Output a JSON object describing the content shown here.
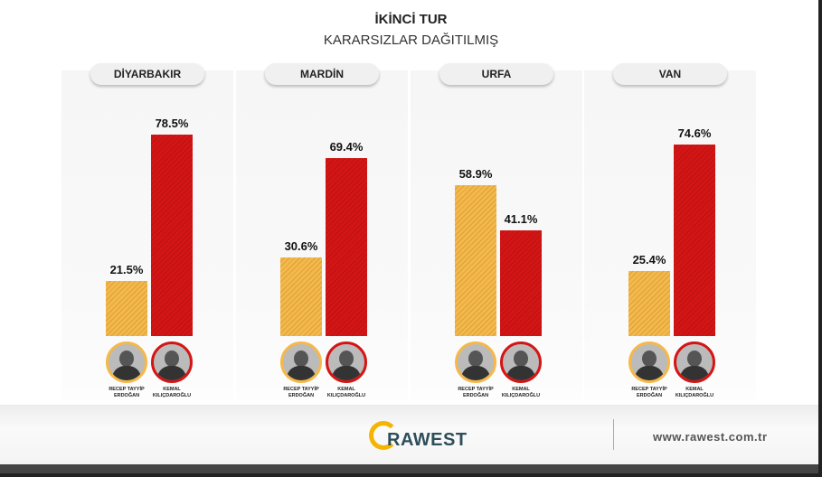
{
  "title": "İKİNCİ TUR",
  "subtitle": "KARARSIZLAR DAĞITILMIŞ",
  "chart_data": [
    {
      "type": "bar",
      "title": "DİYARBAKIR",
      "categories": [
        "RECEP TAYYİP ERDOĞAN",
        "KEMAL KILIÇDAROĞLU"
      ],
      "values": [
        21.5,
        78.5
      ],
      "value_labels": [
        "21.5%",
        "78.5%"
      ],
      "colors": [
        "#f5b849",
        "#d41515"
      ],
      "ylim": [
        0,
        100
      ]
    },
    {
      "type": "bar",
      "title": "MARDİN",
      "categories": [
        "RECEP TAYYİP ERDOĞAN",
        "KEMAL KILIÇDAROĞLU"
      ],
      "values": [
        30.6,
        69.4
      ],
      "value_labels": [
        "30.6%",
        "69.4%"
      ],
      "colors": [
        "#f5b849",
        "#d41515"
      ],
      "ylim": [
        0,
        100
      ]
    },
    {
      "type": "bar",
      "title": "URFA",
      "categories": [
        "RECEP TAYYİP ERDOĞAN",
        "KEMAL KILIÇDAROĞLU"
      ],
      "values": [
        58.9,
        41.1
      ],
      "value_labels": [
        "58.9%",
        "41.1%"
      ],
      "colors": [
        "#f5b849",
        "#d41515"
      ],
      "ylim": [
        0,
        100
      ]
    },
    {
      "type": "bar",
      "title": "VAN",
      "categories": [
        "RECEP TAYYİP ERDOĞAN",
        "KEMAL KILIÇDAROĞLU"
      ],
      "values": [
        25.4,
        74.6
      ],
      "value_labels": [
        "25.4%",
        "74.6%"
      ],
      "colors": [
        "#f5b849",
        "#d41515"
      ],
      "ylim": [
        0,
        100
      ]
    }
  ],
  "footer": {
    "logo": "RAWEST",
    "url": "www.rawest.com.tr"
  }
}
